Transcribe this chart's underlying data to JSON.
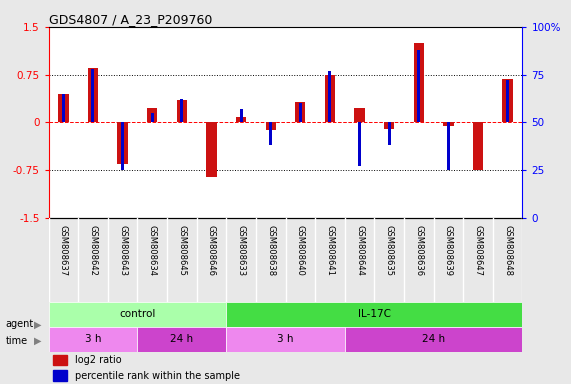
{
  "title": "GDS4807 / A_23_P209760",
  "samples": [
    "GSM808637",
    "GSM808642",
    "GSM808643",
    "GSM808634",
    "GSM808645",
    "GSM808646",
    "GSM808633",
    "GSM808638",
    "GSM808640",
    "GSM808641",
    "GSM808644",
    "GSM808635",
    "GSM808636",
    "GSM808639",
    "GSM808647",
    "GSM808648"
  ],
  "log2_ratio": [
    0.45,
    0.85,
    -0.65,
    0.22,
    0.35,
    -0.85,
    0.08,
    -0.12,
    0.32,
    0.75,
    0.22,
    -0.1,
    1.25,
    -0.05,
    -0.75,
    0.68
  ],
  "percentile": [
    65,
    78,
    25,
    55,
    62,
    50,
    57,
    38,
    60,
    77,
    27,
    38,
    88,
    25,
    50,
    72
  ],
  "bar_color": "#cc1111",
  "pct_color": "#0000cc",
  "ylim": [
    -1.5,
    1.5
  ],
  "pct_ylim": [
    0,
    100
  ],
  "dotted_lines": [
    -0.75,
    0,
    0.75
  ],
  "yticks": [
    -1.5,
    -0.75,
    0,
    0.75,
    1.5
  ],
  "pct_yticks": [
    0,
    25,
    50,
    75,
    100
  ],
  "agent_groups": [
    {
      "label": "control",
      "start": 0,
      "end": 6,
      "color": "#aaffaa"
    },
    {
      "label": "IL-17C",
      "start": 6,
      "end": 16,
      "color": "#44dd44"
    }
  ],
  "time_groups": [
    {
      "label": "3 h",
      "start": 0,
      "end": 3,
      "color": "#ee88ee"
    },
    {
      "label": "24 h",
      "start": 3,
      "end": 6,
      "color": "#cc44cc"
    },
    {
      "label": "3 h",
      "start": 6,
      "end": 10,
      "color": "#ee88ee"
    },
    {
      "label": "24 h",
      "start": 10,
      "end": 16,
      "color": "#cc44cc"
    }
  ],
  "legend_log2": "log2 ratio",
  "legend_pct": "percentile rank within the sample",
  "bg_color": "#e8e8e8",
  "plot_bg": "#ffffff"
}
